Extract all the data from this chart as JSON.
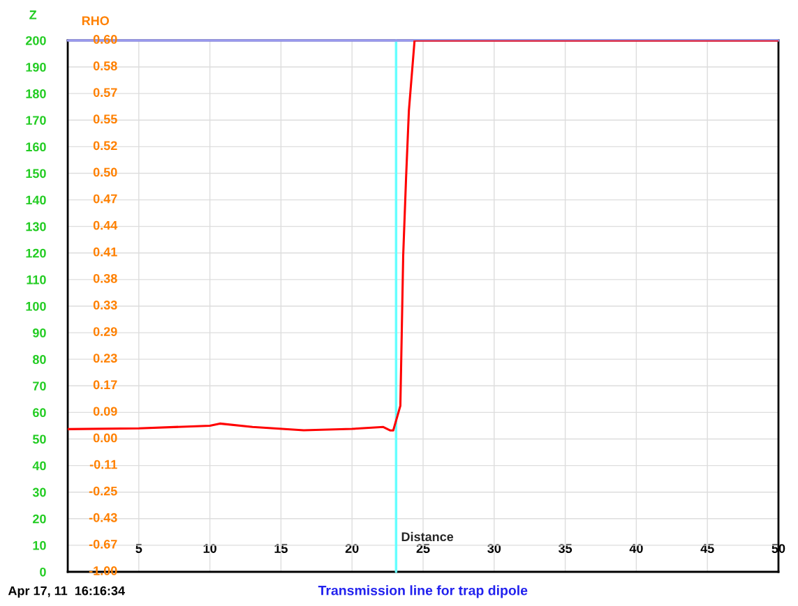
{
  "chart_data": {
    "type": "line",
    "title": "Transmission line for trap dipole",
    "xlabel": "Distance",
    "ylabel": "Z",
    "y2label": "RHO",
    "annotations": [
      "-1.00",
      "-0.67",
      "-0.43",
      "-0.25",
      "-0.11",
      "0.00",
      "0.09",
      "0.17",
      "0.23",
      "0.29",
      "0.33",
      "0.38",
      "0.41",
      "0.44",
      "0.47",
      "0.50",
      "0.52",
      "0.55",
      "0.57",
      "0.58",
      "0.60",
      "Apr 17, 11  16:16:34"
    ],
    "x": [
      0,
      5,
      10,
      10.7,
      13,
      16.6,
      20,
      22.2,
      22.7,
      22.9,
      23.4,
      23.5,
      23.6,
      23.8,
      24.0,
      24.4,
      30,
      40,
      50
    ],
    "series": [
      {
        "color": "#ff0000",
        "values": [
          53.7,
          54,
          55,
          55.8,
          54.5,
          53.3,
          53.8,
          54.5,
          53.2,
          53.2,
          62.5,
          90.5,
          119,
          148,
          173.5,
          200,
          200,
          200,
          200
        ]
      }
    ],
    "xlim": [
      0,
      50
    ],
    "xticks": [
      5,
      10,
      15,
      20,
      25,
      30,
      35,
      40,
      45,
      50
    ],
    "ylim": [
      0,
      200
    ],
    "yticks": [
      0,
      10,
      20,
      30,
      40,
      50,
      60,
      70,
      80,
      90,
      100,
      110,
      120,
      130,
      140,
      150,
      160,
      170,
      180,
      190,
      200
    ],
    "ref_lines": [
      {
        "axis": "x",
        "value": 23.1,
        "color": "#66ffff"
      },
      {
        "axis": "y",
        "value": 200,
        "color": "#9999ee"
      }
    ],
    "grid": true,
    "marker": "none",
    "line_style": "solid"
  }
}
